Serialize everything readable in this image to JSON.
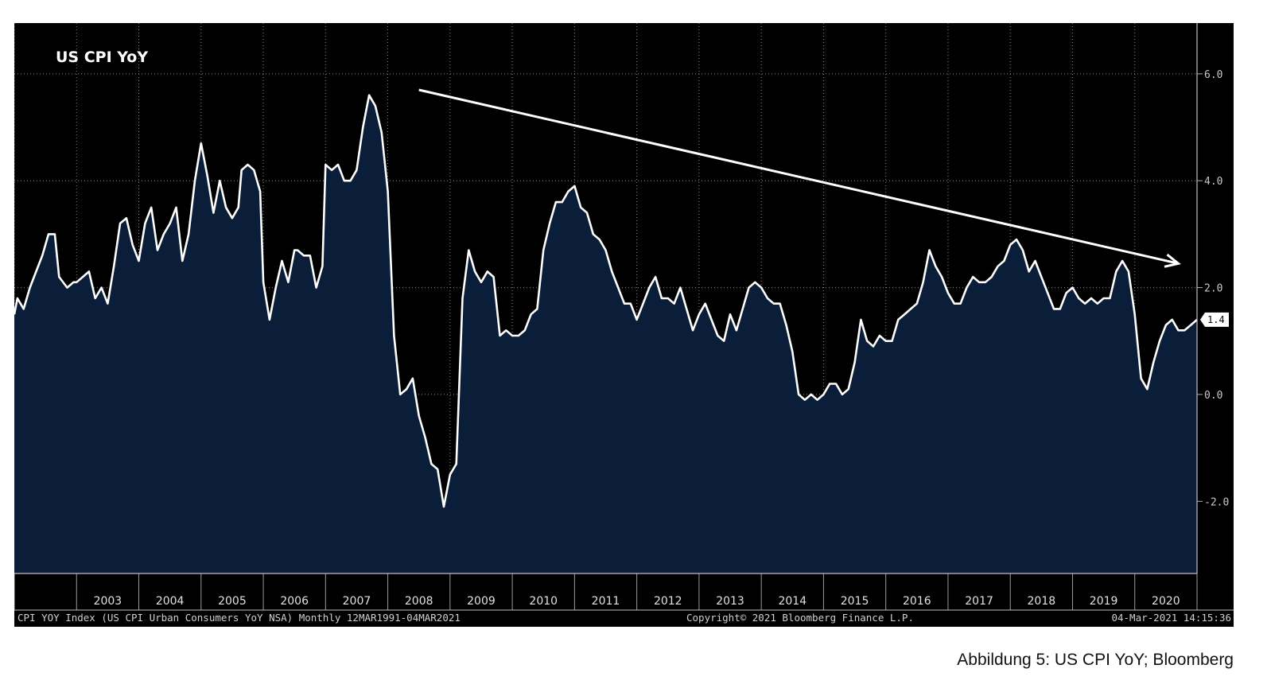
{
  "caption": "Abbildung 5: US CPI YoY; Bloomberg",
  "footer": {
    "left": "CPI YOY Index (US CPI Urban Consumers YoY NSA)  Monthly 12MAR1991-04MAR2021",
    "center": "Copyright© 2021 Bloomberg Finance L.P.",
    "right": "04-Mar-2021 14:15:36"
  },
  "colors": {
    "background": "#000000",
    "area_fill": "#0a1e3a",
    "line": "#ffffff",
    "grid": "#8a8a8a",
    "trend_arrow": "#ffffff"
  },
  "chart_data": {
    "type": "area",
    "title": "US CPI YoY",
    "xlabel": "",
    "ylabel": "",
    "ylim": [
      -3.35,
      6.95
    ],
    "y_ticks": [
      {
        "value": 6.0,
        "label": "6.0"
      },
      {
        "value": 4.0,
        "label": "4.0"
      },
      {
        "value": 2.0,
        "label": "2.0"
      },
      {
        "value": 0.0,
        "label": "0.0"
      },
      {
        "value": -2.0,
        "label": "-2.0"
      }
    ],
    "x_ticks": [
      "2003",
      "2004",
      "2005",
      "2006",
      "2007",
      "2008",
      "2009",
      "2010",
      "2011",
      "2012",
      "2013",
      "2014",
      "2015",
      "2016",
      "2017",
      "2018",
      "2019",
      "2020"
    ],
    "x_range": [
      2002.0,
      2021.0
    ],
    "grid": true,
    "last_value_label": "1.4",
    "trend_arrow": {
      "from": [
        2008.5,
        5.7
      ],
      "to": [
        2020.7,
        2.45
      ]
    },
    "series": [
      {
        "x": [
          2002.0,
          2002.05,
          2002.15,
          2002.25,
          2002.35,
          2002.45,
          2002.55,
          2002.65,
          2002.72,
          2002.85,
          2002.95,
          2003.0,
          2003.1,
          2003.2,
          2003.3,
          2003.4,
          2003.5,
          2003.6,
          2003.7,
          2003.8,
          2003.9,
          2004.0,
          2004.1,
          2004.2,
          2004.3,
          2004.4,
          2004.5,
          2004.6,
          2004.7,
          2004.8,
          2004.9,
          2005.0,
          2005.1,
          2005.2,
          2005.3,
          2005.4,
          2005.5,
          2005.6,
          2005.65,
          2005.75,
          2005.85,
          2005.95,
          2006.0,
          2006.1,
          2006.2,
          2006.3,
          2006.4,
          2006.5,
          2006.55,
          2006.65,
          2006.75,
          2006.85,
          2006.95,
          2007.0,
          2007.1,
          2007.2,
          2007.3,
          2007.4,
          2007.5,
          2007.6,
          2007.7,
          2007.8,
          2007.9,
          2008.0,
          2008.1,
          2008.2,
          2008.3,
          2008.4,
          2008.5,
          2008.6,
          2008.7,
          2008.8,
          2008.9,
          2009.0,
          2009.1,
          2009.2,
          2009.3,
          2009.4,
          2009.5,
          2009.6,
          2009.7,
          2009.8,
          2009.9,
          2010.0,
          2010.1,
          2010.2,
          2010.3,
          2010.4,
          2010.5,
          2010.6,
          2010.7,
          2010.8,
          2010.9,
          2011.0,
          2011.1,
          2011.2,
          2011.3,
          2011.4,
          2011.5,
          2011.6,
          2011.7,
          2011.8,
          2011.9,
          2012.0,
          2012.1,
          2012.2,
          2012.3,
          2012.4,
          2012.5,
          2012.6,
          2012.7,
          2012.8,
          2012.9,
          2013.0,
          2013.1,
          2013.2,
          2013.3,
          2013.4,
          2013.5,
          2013.6,
          2013.7,
          2013.8,
          2013.9,
          2014.0,
          2014.1,
          2014.2,
          2014.3,
          2014.4,
          2014.5,
          2014.6,
          2014.7,
          2014.8,
          2014.9,
          2015.0,
          2015.1,
          2015.2,
          2015.3,
          2015.4,
          2015.5,
          2015.6,
          2015.7,
          2015.8,
          2015.9,
          2016.0,
          2016.1,
          2016.2,
          2016.3,
          2016.4,
          2016.5,
          2016.6,
          2016.7,
          2016.8,
          2016.9,
          2017.0,
          2017.1,
          2017.2,
          2017.3,
          2017.4,
          2017.5,
          2017.6,
          2017.7,
          2017.8,
          2017.9,
          2018.0,
          2018.1,
          2018.2,
          2018.3,
          2018.4,
          2018.5,
          2018.6,
          2018.7,
          2018.8,
          2018.9,
          2019.0,
          2019.1,
          2019.2,
          2019.3,
          2019.4,
          2019.5,
          2019.6,
          2019.7,
          2019.8,
          2019.9,
          2020.0,
          2020.1,
          2020.2,
          2020.3,
          2020.4,
          2020.5,
          2020.6,
          2020.7,
          2020.8,
          2020.9,
          2021.0
        ],
        "values": [
          1.5,
          1.8,
          1.6,
          2.0,
          2.3,
          2.6,
          3.0,
          3.0,
          2.2,
          2.0,
          2.1,
          2.1,
          2.2,
          2.3,
          1.8,
          2.0,
          1.7,
          2.4,
          3.2,
          3.3,
          2.8,
          2.5,
          3.2,
          3.5,
          2.7,
          3.0,
          3.2,
          3.5,
          2.5,
          3.0,
          4.0,
          4.7,
          4.1,
          3.4,
          4.0,
          3.5,
          3.3,
          3.5,
          4.2,
          4.3,
          4.2,
          3.8,
          2.1,
          1.4,
          2.0,
          2.5,
          2.1,
          2.7,
          2.7,
          2.6,
          2.6,
          2.0,
          2.4,
          4.3,
          4.2,
          4.3,
          4.0,
          4.0,
          4.2,
          5.0,
          5.6,
          5.4,
          4.9,
          3.8,
          1.1,
          0.0,
          0.1,
          0.3,
          -0.4,
          -0.8,
          -1.3,
          -1.4,
          -2.1,
          -1.5,
          -1.3,
          1.8,
          2.7,
          2.3,
          2.1,
          2.3,
          2.2,
          1.1,
          1.2,
          1.1,
          1.1,
          1.2,
          1.5,
          1.6,
          2.7,
          3.2,
          3.6,
          3.6,
          3.8,
          3.9,
          3.5,
          3.4,
          3.0,
          2.9,
          2.7,
          2.3,
          2.0,
          1.7,
          1.7,
          1.4,
          1.7,
          2.0,
          2.2,
          1.8,
          1.8,
          1.7,
          2.0,
          1.6,
          1.2,
          1.5,
          1.7,
          1.4,
          1.1,
          1.0,
          1.5,
          1.2,
          1.6,
          2.0,
          2.1,
          2.0,
          1.8,
          1.7,
          1.7,
          1.3,
          0.8,
          0.0,
          -0.1,
          0.0,
          -0.1,
          0.0,
          0.2,
          0.2,
          0.0,
          0.1,
          0.6,
          1.4,
          1.0,
          0.9,
          1.1,
          1.0,
          1.0,
          1.4,
          1.5,
          1.6,
          1.7,
          2.1,
          2.7,
          2.4,
          2.2,
          1.9,
          1.7,
          1.7,
          2.0,
          2.2,
          2.1,
          2.1,
          2.2,
          2.4,
          2.5,
          2.8,
          2.9,
          2.7,
          2.3,
          2.5,
          2.2,
          1.9,
          1.6,
          1.6,
          1.9,
          2.0,
          1.8,
          1.7,
          1.8,
          1.7,
          1.8,
          1.8,
          2.3,
          2.5,
          2.3,
          1.5,
          0.3,
          0.1,
          0.6,
          1.0,
          1.3,
          1.4,
          1.2,
          1.2,
          1.3,
          1.4
        ]
      }
    ]
  }
}
